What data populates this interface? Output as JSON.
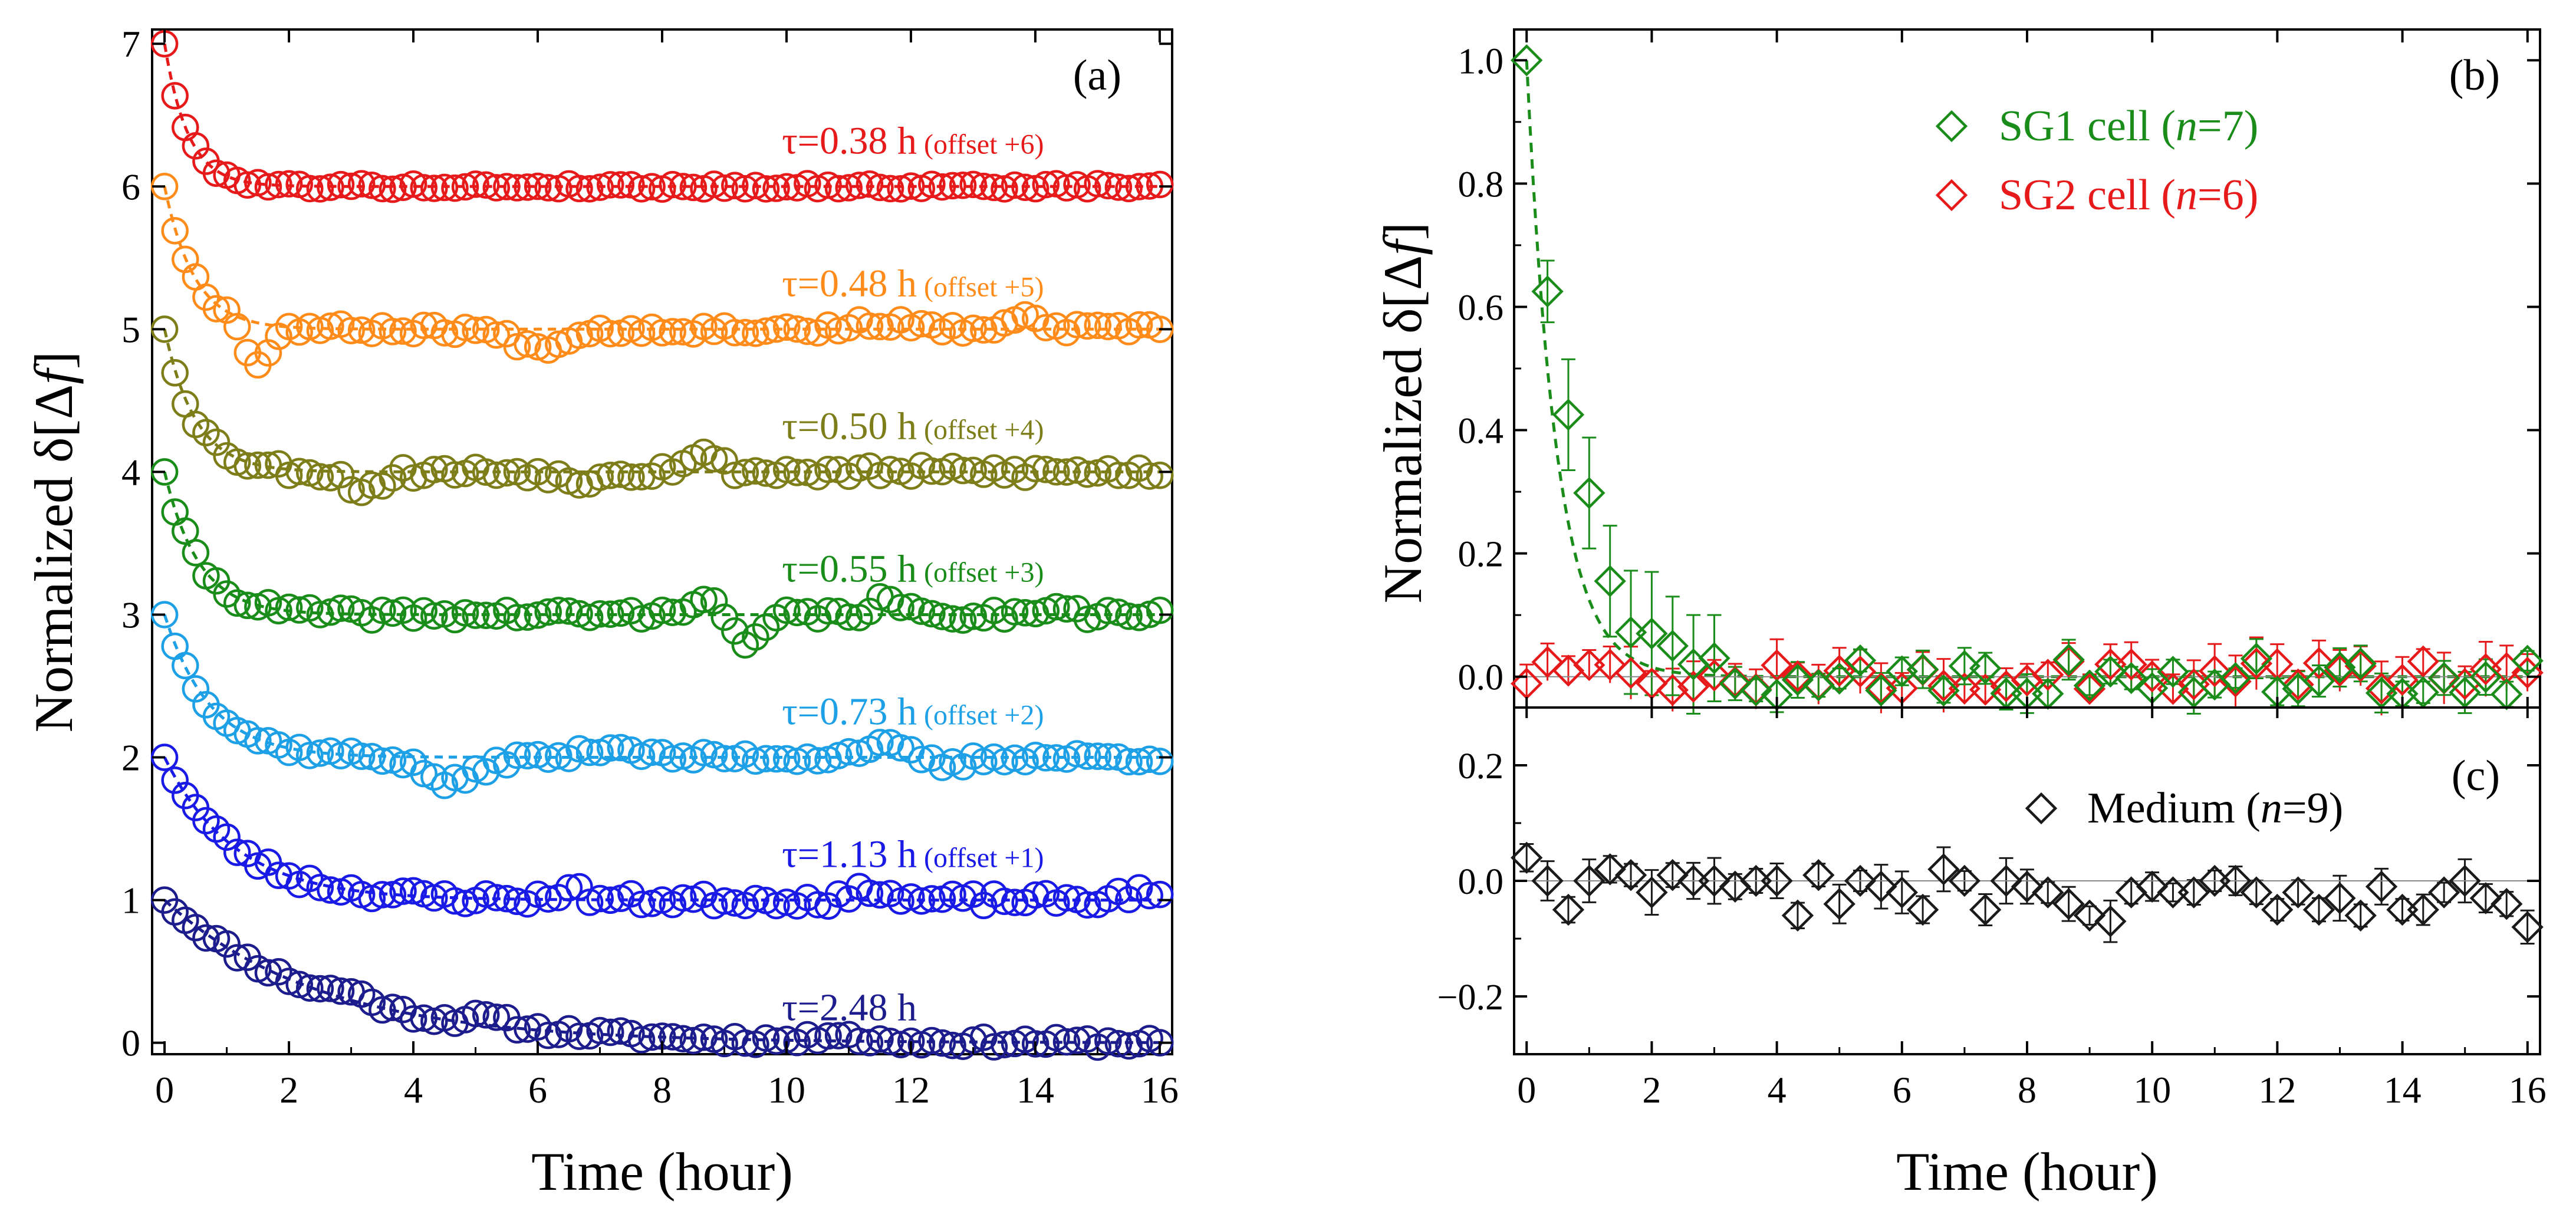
{
  "chart_data": [
    {
      "panel": "(a)",
      "type": "scatter",
      "title": "",
      "xlabel": "Time (hour)",
      "ylabel": "Normalized δ[Δf]",
      "ylabel_prefix": "Normalized δ[Δ",
      "ylabel_italic": "f",
      "ylabel_suffix": "]",
      "xlim": [
        -0.2,
        16.2
      ],
      "ylim": [
        -0.08,
        7.1
      ],
      "xticks": [
        "0",
        "2",
        "4",
        "6",
        "8",
        "10",
        "12",
        "14",
        "16"
      ],
      "yticks": [
        "0",
        "1",
        "2",
        "3",
        "4",
        "5",
        "6",
        "7"
      ],
      "x_start": 0,
      "x_step": 0.1667,
      "n_points": 97,
      "series": [
        {
          "name": "τ=2.48 h",
          "tau_label": "τ=2.48 h",
          "offset_label": "",
          "color": "#1c1c8c",
          "tau": 2.48,
          "offset": 0,
          "seed": 11,
          "noise": 0.035,
          "bumps": [
            [
              3,
              0.06,
              0.4
            ],
            [
              5.2,
              0.05,
              0.5
            ],
            [
              10.8,
              0.07,
              0.3
            ]
          ]
        },
        {
          "name": "τ=1.13 h (offset +1)",
          "tau_label": "τ=1.13 h",
          "offset_label": "(offset +1)",
          "color": "#1a1ae6",
          "tau": 1.13,
          "offset": 1,
          "seed": 23,
          "noise": 0.045,
          "bumps": [
            [
              6.5,
              0.07,
              0.3
            ],
            [
              11.4,
              0.09,
              0.3
            ],
            [
              15.6,
              0.05,
              0.3
            ]
          ]
        },
        {
          "name": "τ=0.73 h (offset +2)",
          "tau_label": "τ=0.73 h",
          "offset_label": "(offset +2)",
          "color": "#1ea0e6",
          "tau": 0.73,
          "offset": 2,
          "seed": 37,
          "noise": 0.035,
          "bumps": [
            [
              4.6,
              -0.18,
              0.6
            ],
            [
              7.2,
              0.08,
              0.5
            ],
            [
              11.5,
              0.08,
              0.5
            ],
            [
              12.6,
              -0.06,
              0.4
            ]
          ]
        },
        {
          "name": "τ=0.55 h (offset +3)",
          "tau_label": "τ=0.55 h",
          "offset_label": "(offset +3)",
          "color": "#1a8c1a",
          "tau": 0.55,
          "offset": 3,
          "seed": 41,
          "noise": 0.04,
          "bumps": [
            [
              8.6,
              0.12,
              0.3
            ],
            [
              9.4,
              -0.22,
              0.3
            ],
            [
              11.6,
              0.1,
              0.3
            ],
            [
              14.3,
              0.08,
              0.3
            ]
          ]
        },
        {
          "name": "τ=0.50 h (offset +4)",
          "tau_label": "τ=0.50 h",
          "offset_label": "(offset +4)",
          "color": "#7d7d1a",
          "tau": 0.5,
          "offset": 4,
          "seed": 53,
          "noise": 0.045,
          "bumps": [
            [
              3.2,
              -0.12,
              0.4
            ],
            [
              8.6,
              0.12,
              0.4
            ],
            [
              6.6,
              -0.08,
              0.3
            ]
          ]
        },
        {
          "name": "τ=0.48 h (offset +5)",
          "tau_label": "τ=0.48 h",
          "offset_label": "(offset +5)",
          "color": "#ff8c1a",
          "tau": 0.48,
          "offset": 5,
          "seed": 67,
          "noise": 0.035,
          "bumps": [
            [
              1.5,
              -0.3,
              0.25
            ],
            [
              6,
              -0.12,
              0.6
            ],
            [
              13.9,
              0.08,
              0.3
            ],
            [
              11.5,
              0.05,
              0.5
            ]
          ]
        },
        {
          "name": "τ=0.38 h (offset +6)",
          "tau_label": "τ=0.38 h",
          "offset_label": "(offset +6)",
          "color": "#e61a1a",
          "tau": 0.38,
          "offset": 6,
          "seed": 79,
          "noise": 0.02,
          "bumps": []
        }
      ]
    },
    {
      "panel": "(b)",
      "type": "scatter",
      "xlabel": "",
      "ylabel": "Normalized δ[Δf]",
      "ylabel_prefix": "Normalized δ[Δ",
      "ylabel_italic": "f",
      "ylabel_suffix": "]",
      "xlim": [
        -0.2,
        16.2
      ],
      "ylim": [
        -0.05,
        1.05
      ],
      "yticks": [
        "0.0",
        "0.2",
        "0.4",
        "0.6",
        "0.8",
        "1.0"
      ],
      "legend_position": "top-right",
      "x_start": 0,
      "x_step": 0.3333,
      "n_points": 49,
      "series": [
        {
          "name": "SG1 cell (n=7)",
          "label_prefix": "SG1 cell (",
          "label_italic": "n",
          "label_suffix": "=7)",
          "color": "#1a8c1a",
          "tau": 0.48,
          "y_head": [
            1.0,
            0.625,
            0.425,
            0.298,
            0.155,
            0.072,
            0.07,
            0.05,
            0.02,
            0.03
          ],
          "err_head": [
            0.0,
            0.05,
            0.09,
            0.09,
            0.09,
            0.1,
            0.1,
            0.08,
            0.08,
            0.07
          ]
        },
        {
          "name": "SG2 cell (n=6)",
          "label_prefix": "SG2 cell (",
          "label_italic": "n",
          "label_suffix": "=6)",
          "color": "#e61a1a",
          "tau": 0
        }
      ]
    },
    {
      "panel": "(c)",
      "type": "scatter",
      "xlabel": "Time (hour)",
      "ylabel": "",
      "xlim": [
        -0.2,
        16.2
      ],
      "ylim": [
        -0.3,
        0.3
      ],
      "xticks": [
        "0",
        "2",
        "4",
        "6",
        "8",
        "10",
        "12",
        "14",
        "16"
      ],
      "yticks": [
        "−0.2",
        "0.0",
        "0.2"
      ],
      "legend_position": "top-right",
      "x_start": 0,
      "x_step": 0.3333,
      "n_points": 49,
      "series": [
        {
          "name": "Medium (n=9)",
          "label_prefix": "Medium (",
          "label_italic": "n",
          "label_suffix": "=9)",
          "color": "#1a1a1a",
          "y": [
            0.04,
            0.0,
            -0.05,
            0.0,
            0.02,
            0.01,
            -0.02,
            0.01,
            0.0,
            0.0,
            -0.01,
            0.0,
            0.0,
            -0.06,
            0.01,
            -0.04,
            0.0,
            -0.01,
            -0.02,
            -0.05,
            0.02,
            0.0,
            -0.05,
            0.0,
            -0.01,
            -0.02,
            -0.04,
            -0.06,
            -0.07,
            -0.02,
            -0.01,
            -0.02,
            -0.02,
            0.0,
            0.0,
            -0.02,
            -0.05,
            -0.02,
            -0.05,
            -0.03,
            -0.06,
            -0.01,
            -0.05,
            -0.05,
            -0.02,
            0.0,
            -0.03,
            -0.04,
            -0.08
          ]
        }
      ]
    }
  ]
}
